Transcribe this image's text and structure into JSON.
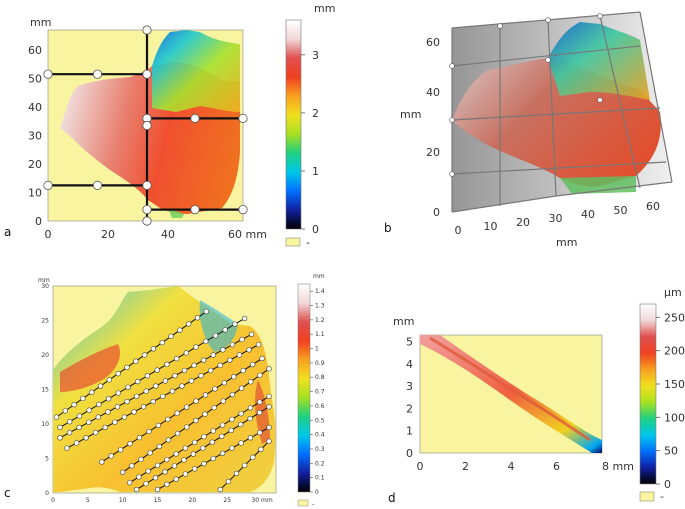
{
  "colormap": [
    "#000000",
    "#1020a0",
    "#0070ff",
    "#00c8e8",
    "#20d080",
    "#a8e020",
    "#f0e020",
    "#f8a020",
    "#f04020",
    "#e05050",
    "#f0d8d8",
    "#ffffff"
  ],
  "no_data_color": "#f8f4a0",
  "panels": {
    "a": {
      "letter": "a",
      "unit": "mm",
      "x_ticks": [
        "0",
        "20",
        "40",
        "60 mm"
      ],
      "y_ticks": [
        "0",
        "10",
        "20",
        "30",
        "40",
        "50",
        "60"
      ],
      "scale_unit": "mm",
      "scale_ticks": [
        "0",
        "1",
        "2",
        "3"
      ],
      "scale_range": [
        0,
        3.6
      ],
      "no_data_label": "-"
    },
    "b": {
      "letter": "b",
      "y_label": "mm",
      "x_label": "mm",
      "x_ticks": [
        "0",
        "10",
        "20",
        "30",
        "40",
        "50",
        "60"
      ],
      "y_ticks": [
        "0",
        "20",
        "40",
        "60"
      ]
    },
    "c": {
      "letter": "c",
      "unit": "mm",
      "x_ticks": [
        "0",
        "5",
        "10",
        "15",
        "20",
        "25",
        "30 mm"
      ],
      "y_ticks": [
        "0",
        "5",
        "10",
        "15",
        "20",
        "25",
        "30"
      ],
      "scale_unit": "mm",
      "scale_ticks": [
        "0",
        "0.1",
        "0.2",
        "0.3",
        "0.4",
        "0.5",
        "0.6",
        "0.7",
        "0.8",
        "0.9",
        "1",
        "1.1",
        "1.2",
        "1.3",
        "1.4"
      ],
      "scale_range": [
        0,
        1.45
      ],
      "no_data_label": "-"
    },
    "d": {
      "letter": "d",
      "unit": "mm",
      "x_ticks": [
        "0",
        "2",
        "4",
        "6",
        "8 mm"
      ],
      "y_ticks": [
        "0",
        "1",
        "2",
        "3",
        "4",
        "5"
      ],
      "scale_unit": "µm",
      "scale_ticks": [
        "0",
        "50",
        "100",
        "150",
        "200",
        "250"
      ],
      "scale_range": [
        0,
        270
      ],
      "no_data_label": "-"
    }
  },
  "chart_data": [
    {
      "type": "heatmap",
      "title": "a",
      "xlabel": "mm",
      "ylabel": "mm",
      "xlim": [
        0,
        65
      ],
      "ylim": [
        0,
        67
      ],
      "colorbar": {
        "label": "mm",
        "range": [
          0,
          3.6
        ]
      },
      "grid_lines": [
        {
          "x": [
            0,
            33
          ],
          "y": [
            51.5,
            51.5
          ]
        },
        {
          "x": [
            0,
            33
          ],
          "y": [
            12.5,
            12.5
          ]
        },
        {
          "x": [
            33,
            65
          ],
          "y": [
            36,
            36
          ]
        },
        {
          "x": [
            33,
            65
          ],
          "y": [
            4,
            4
          ]
        },
        {
          "x": [
            33,
            33
          ],
          "y": [
            0,
            67
          ]
        }
      ]
    },
    {
      "type": "heatmap",
      "title": "b",
      "xlabel": "mm",
      "ylabel": "mm",
      "xlim": [
        0,
        65
      ],
      "ylim": [
        0,
        67
      ]
    },
    {
      "type": "heatmap",
      "title": "c",
      "xlabel": "mm",
      "ylabel": "mm",
      "xlim": [
        0,
        32
      ],
      "ylim": [
        0,
        30
      ],
      "colorbar": {
        "label": "mm",
        "range": [
          0,
          1.45
        ]
      },
      "traces": [
        {
          "x": [
            0.5,
            22
          ],
          "y": [
            11,
            26.3
          ]
        },
        {
          "x": [
            1,
            27.5
          ],
          "y": [
            9.5,
            25.3
          ]
        },
        {
          "x": [
            1,
            28.5
          ],
          "y": [
            8,
            23
          ]
        },
        {
          "x": [
            2,
            29.5
          ],
          "y": [
            6.5,
            21.5
          ]
        },
        {
          "x": [
            7,
            30
          ],
          "y": [
            4.5,
            19.5
          ]
        },
        {
          "x": [
            10,
            31
          ],
          "y": [
            3,
            18
          ]
        },
        {
          "x": [
            11,
            31
          ],
          "y": [
            1.5,
            14
          ]
        },
        {
          "x": [
            12,
            31
          ],
          "y": [
            0.5,
            12.5
          ]
        },
        {
          "x": [
            15,
            31
          ],
          "y": [
            0.5,
            9.5
          ]
        },
        {
          "x": [
            24,
            31
          ],
          "y": [
            0.5,
            7.5
          ]
        }
      ]
    },
    {
      "type": "heatmap",
      "title": "d",
      "xlabel": "mm",
      "ylabel": "mm",
      "xlim": [
        0,
        8
      ],
      "ylim": [
        0,
        5.3
      ],
      "colorbar": {
        "label": "µm",
        "range": [
          0,
          270
        ]
      }
    }
  ]
}
